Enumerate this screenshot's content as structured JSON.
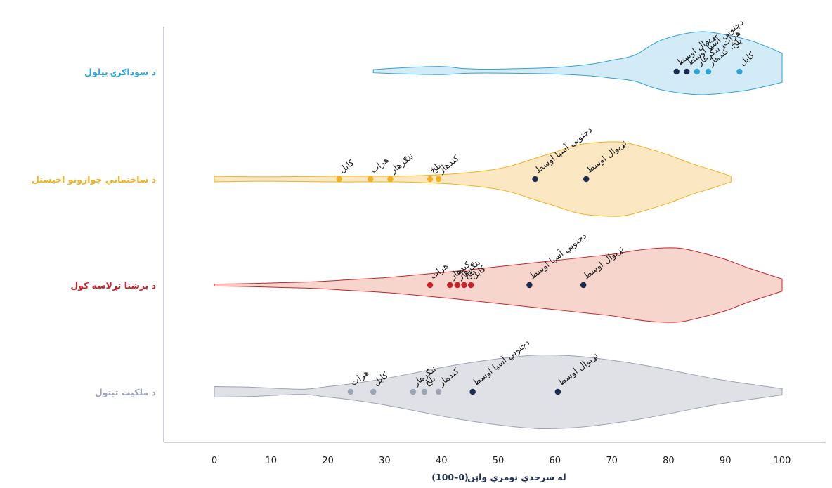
{
  "chart_data": {
    "type": "violin",
    "xlabel": "له سرحدي نومري واټن",
    "xlabel_note": "(0–100)",
    "xlim": [
      0,
      100
    ],
    "xticks": [
      0,
      10,
      20,
      30,
      40,
      50,
      60,
      70,
      80,
      90,
      100
    ],
    "rows": [
      {
        "name": "د سوداګرۍ پیلول",
        "color": "#2ea3d6",
        "fill": "#d3ebf7",
        "profile": [
          [
            28.0,
            0.1
          ],
          [
            34,
            0.2
          ],
          [
            40,
            0.25
          ],
          [
            44,
            0.15
          ],
          [
            48,
            0.12
          ],
          [
            54,
            0.15
          ],
          [
            60,
            0.2
          ],
          [
            66,
            0.35
          ],
          [
            70,
            0.55
          ],
          [
            74,
            0.8
          ],
          [
            78,
            1.45
          ],
          [
            82,
            1.8
          ],
          [
            86,
            1.95
          ],
          [
            90,
            1.8
          ],
          [
            94,
            1.55
          ],
          [
            97,
            1.25
          ],
          [
            100,
            0.9
          ]
        ],
        "points": [
          {
            "x": 92.5,
            "label": "کابل",
            "color": "#2ea3d6",
            "dx": 0,
            "dy": 0
          },
          {
            "x": 87.0,
            "label": "بلخ، کندهار",
            "color": "#2ea3d6",
            "dx": 0,
            "dy": 0
          },
          {
            "x": 85.0,
            "label": "هرات، ننګرهار",
            "color": "#2ea3d6",
            "dx": 0,
            "dy": 0
          },
          {
            "x": 83.2,
            "label": "دجنوبي آسیا اوسط",
            "color": "#1b2a4e",
            "dx": 0,
            "dy": 0
          },
          {
            "x": 81.4,
            "label": "نړیوال اوسط",
            "color": "#1b2a4e",
            "dx": 0,
            "dy": 0
          }
        ]
      },
      {
        "name": "د ساختماني جوازونو اخیستل",
        "color": "#f2b01e",
        "fill": "#fbe8c2",
        "profile": [
          [
            0,
            0.1
          ],
          [
            6,
            0.08
          ],
          [
            12,
            0.08
          ],
          [
            20,
            0.1
          ],
          [
            26,
            0.1
          ],
          [
            32,
            0.1
          ],
          [
            36,
            0.12
          ],
          [
            42,
            0.18
          ],
          [
            48,
            0.3
          ],
          [
            52,
            0.45
          ],
          [
            56,
            0.7
          ],
          [
            60,
            0.95
          ],
          [
            64,
            1.2
          ],
          [
            68,
            1.3
          ],
          [
            72,
            1.3
          ],
          [
            76,
            1.1
          ],
          [
            80,
            0.85
          ],
          [
            84,
            0.55
          ],
          [
            88,
            0.3
          ],
          [
            91,
            0.1
          ]
        ],
        "points": [
          {
            "x": 22.0,
            "label": "کابل",
            "color": "#f2b01e",
            "dx": 0,
            "dy": 0
          },
          {
            "x": 27.5,
            "label": "هرات",
            "color": "#f2b01e",
            "dx": 0,
            "dy": 0
          },
          {
            "x": 31.0,
            "label": "ننګرهار",
            "color": "#f2b01e",
            "dx": 0,
            "dy": 0
          },
          {
            "x": 38.0,
            "label": "بلخ",
            "color": "#f2b01e",
            "dx": 0,
            "dy": 0
          },
          {
            "x": 39.5,
            "label": "کندهار",
            "color": "#f2b01e",
            "dx": 0,
            "dy": 0
          },
          {
            "x": 56.5,
            "label": "دجنوبي آسیا اوسط",
            "color": "#1b2a4e",
            "dx": 0,
            "dy": 0
          },
          {
            "x": 65.5,
            "label": "نړیوال اوسط",
            "color": "#1b2a4e",
            "dx": 0,
            "dy": 0
          }
        ]
      },
      {
        "name": "د برښنا تړلاسه کول",
        "color": "#c8222b",
        "fill": "#f6d5cc",
        "profile": [
          [
            0,
            0.04
          ],
          [
            6,
            0.06
          ],
          [
            12,
            0.1
          ],
          [
            18,
            0.14
          ],
          [
            24,
            0.22
          ],
          [
            30,
            0.3
          ],
          [
            36,
            0.42
          ],
          [
            42,
            0.55
          ],
          [
            48,
            0.7
          ],
          [
            54,
            0.85
          ],
          [
            60,
            1.0
          ],
          [
            66,
            1.15
          ],
          [
            70,
            1.25
          ],
          [
            74,
            1.4
          ],
          [
            78,
            1.5
          ],
          [
            82,
            1.5
          ],
          [
            86,
            1.3
          ],
          [
            90,
            1.05
          ],
          [
            94,
            0.7
          ],
          [
            100,
            0.25
          ]
        ],
        "points": [
          {
            "x": 38.0,
            "label": "هرات",
            "color": "#c8222b",
            "dx": 0,
            "dy": 0
          },
          {
            "x": 41.5,
            "label": "کندهار",
            "color": "#c8222b",
            "dx": 0,
            "dy": 0
          },
          {
            "x": 42.8,
            "label": "ننګرهار",
            "color": "#c8222b",
            "dx": 0,
            "dy": 0
          },
          {
            "x": 44.0,
            "label": "بلخ",
            "color": "#c8222b",
            "dx": 0,
            "dy": 0
          },
          {
            "x": 45.2,
            "label": "کابل",
            "color": "#c8222b",
            "dx": 0,
            "dy": 0
          },
          {
            "x": 55.5,
            "label": "دجنوبي آسیا اوسط",
            "color": "#1b2a4e",
            "dx": 0,
            "dy": 0
          },
          {
            "x": 65.0,
            "label": "نړیوال اوسط",
            "color": "#1b2a4e",
            "dx": 0,
            "dy": 0
          }
        ]
      },
      {
        "name": "د ملکیت ثبتول",
        "color": "#9ca3b3",
        "fill": "#dfe1e6",
        "profile": [
          [
            0,
            0.2
          ],
          [
            6,
            0.18
          ],
          [
            12,
            0.12
          ],
          [
            16,
            0.1
          ],
          [
            20,
            0.2
          ],
          [
            24,
            0.3
          ],
          [
            30,
            0.5
          ],
          [
            36,
            0.75
          ],
          [
            42,
            1.0
          ],
          [
            48,
            1.2
          ],
          [
            54,
            1.35
          ],
          [
            58,
            1.4
          ],
          [
            64,
            1.35
          ],
          [
            70,
            1.2
          ],
          [
            76,
            1.0
          ],
          [
            82,
            0.75
          ],
          [
            88,
            0.5
          ],
          [
            94,
            0.3
          ],
          [
            100,
            0.12
          ]
        ],
        "points": [
          {
            "x": 24.0,
            "label": "هرات",
            "color": "#9ca3b3",
            "dx": 0,
            "dy": 0
          },
          {
            "x": 28.0,
            "label": "کابل",
            "color": "#9ca3b3",
            "dx": 0,
            "dy": 0
          },
          {
            "x": 35.0,
            "label": "ننګرهار",
            "color": "#9ca3b3",
            "dx": 0,
            "dy": 0
          },
          {
            "x": 37.0,
            "label": "بلخ",
            "color": "#9ca3b3",
            "dx": 0,
            "dy": 0
          },
          {
            "x": 39.5,
            "label": "کندهار",
            "color": "#9ca3b3",
            "dx": 0,
            "dy": 0
          },
          {
            "x": 45.5,
            "label": "دجنوبي آسیا اوسط",
            "color": "#1b2a4e",
            "dx": 0,
            "dy": 0
          },
          {
            "x": 60.5,
            "label": "نړیوال اوسط",
            "color": "#1b2a4e",
            "dx": 0,
            "dy": 0
          }
        ]
      }
    ]
  }
}
